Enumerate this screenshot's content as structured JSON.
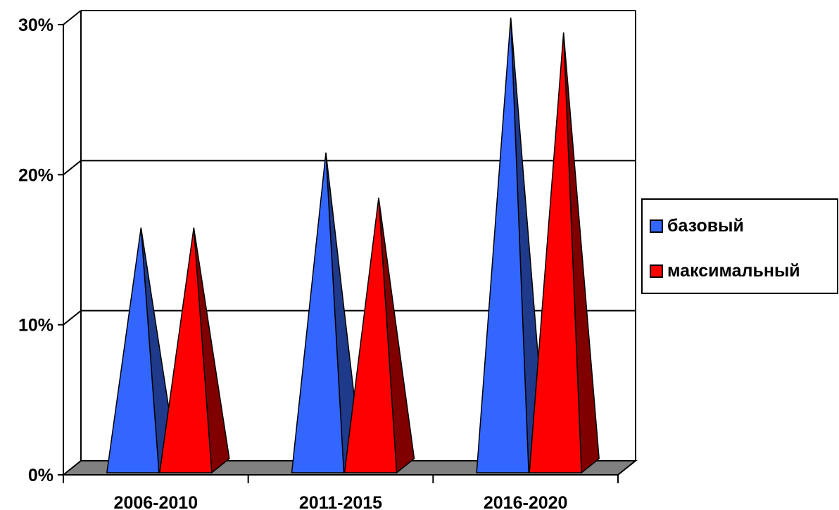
{
  "chart_data": {
    "type": "bar",
    "bar_shape": "pyramid",
    "three_d": true,
    "categories": [
      "2006-2010",
      "2011-2015",
      "2016-2020"
    ],
    "series": [
      {
        "name": "базовый",
        "values": [
          16,
          21,
          30
        ],
        "color": "#3366ff",
        "side_color": "#1f3a8a"
      },
      {
        "name": "максимальный",
        "values": [
          16,
          18,
          29
        ],
        "color": "#ff0000",
        "side_color": "#800000"
      }
    ],
    "y_ticks": [
      0,
      10,
      20,
      30
    ],
    "y_tick_labels": [
      "0%",
      "10%",
      "20%",
      "30%"
    ],
    "ylim": [
      0,
      30
    ],
    "grid": true,
    "legend": "right",
    "floor_color": "#808080"
  }
}
